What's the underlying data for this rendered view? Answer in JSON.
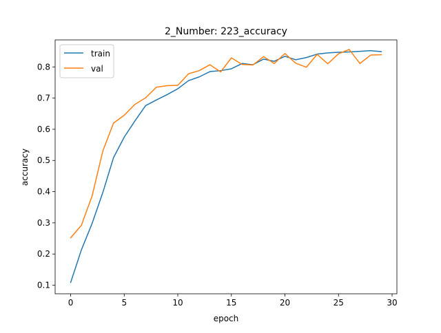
{
  "chart_data": {
    "type": "line",
    "title": "2_Number: 223_accuracy",
    "xlabel": "epoch",
    "ylabel": "accuracy",
    "xlim": [
      -1.45,
      30.45
    ],
    "ylim": [
      0.0725,
      0.8866
    ],
    "xticks": [
      0,
      5,
      10,
      15,
      20,
      25,
      30
    ],
    "yticks": [
      0.1,
      0.2,
      0.3,
      0.4,
      0.5,
      0.6,
      0.7,
      0.8
    ],
    "ytick_labels": [
      "0.1",
      "0.2",
      "0.3",
      "0.4",
      "0.5",
      "0.6",
      "0.7",
      "0.8"
    ],
    "grid": false,
    "legend_position": "upper left",
    "x": [
      0,
      1,
      2,
      3,
      4,
      5,
      6,
      7,
      8,
      9,
      10,
      11,
      12,
      13,
      14,
      15,
      16,
      17,
      18,
      19,
      20,
      21,
      22,
      23,
      24,
      25,
      26,
      27,
      28,
      29
    ],
    "series": [
      {
        "name": "train",
        "color": "#1f77b4",
        "values": [
          0.109,
          0.213,
          0.298,
          0.397,
          0.509,
          0.575,
          0.627,
          0.676,
          0.694,
          0.711,
          0.73,
          0.756,
          0.768,
          0.785,
          0.788,
          0.794,
          0.811,
          0.807,
          0.825,
          0.818,
          0.834,
          0.823,
          0.83,
          0.841,
          0.845,
          0.847,
          0.848,
          0.85,
          0.852,
          0.849
        ]
      },
      {
        "name": "val",
        "color": "#ff7f0e",
        "values": [
          0.252,
          0.292,
          0.386,
          0.53,
          0.62,
          0.645,
          0.68,
          0.701,
          0.735,
          0.74,
          0.741,
          0.778,
          0.788,
          0.807,
          0.784,
          0.829,
          0.808,
          0.806,
          0.833,
          0.811,
          0.843,
          0.812,
          0.799,
          0.84,
          0.81,
          0.842,
          0.856,
          0.811,
          0.838,
          0.839
        ]
      }
    ]
  }
}
